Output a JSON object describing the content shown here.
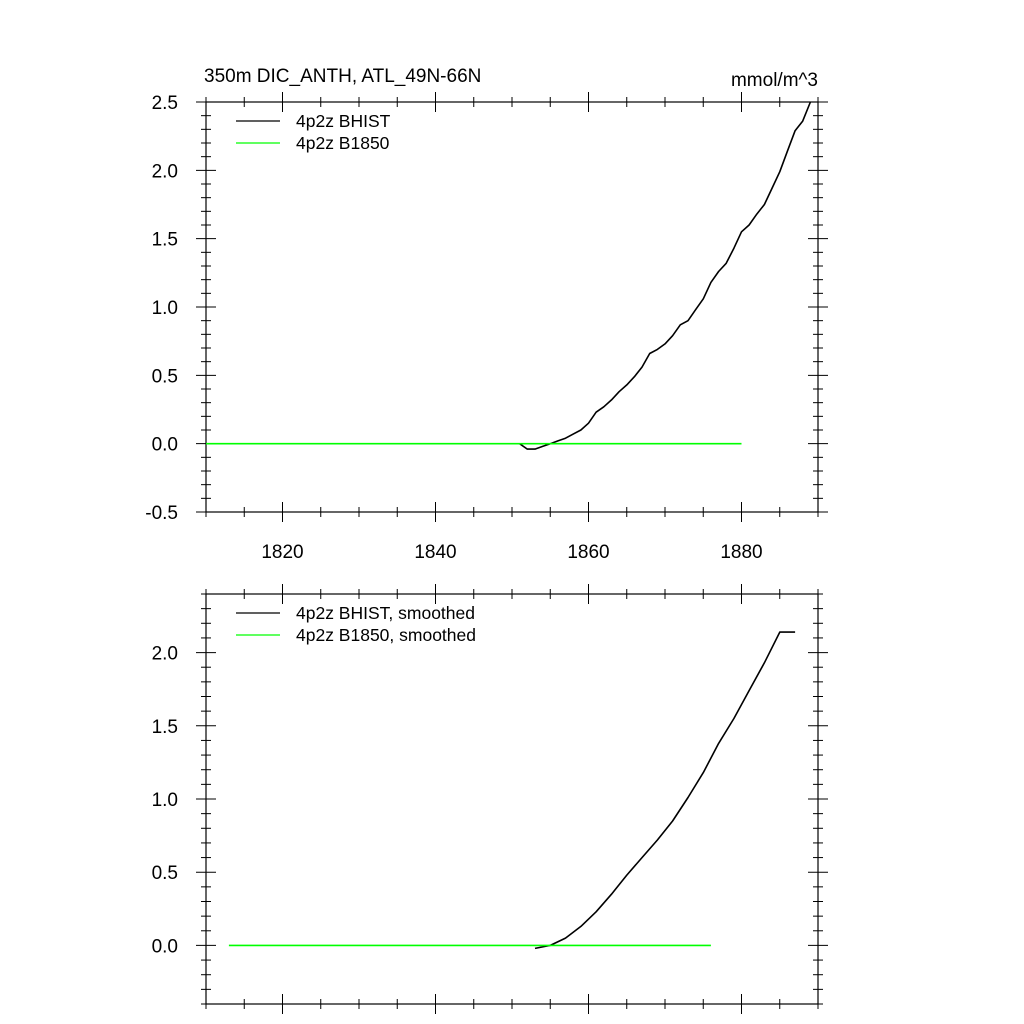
{
  "chart_data": [
    {
      "type": "line",
      "title": "350m DIC_ANTH, ATL_49N-66N",
      "units": "mmol/m^3",
      "xlim": [
        1810,
        1890
      ],
      "ylim": [
        -0.5,
        2.5
      ],
      "x_ticks": [
        1820,
        1840,
        1860,
        1880
      ],
      "x_tick_labels": [
        "1820",
        "1840",
        "1860",
        "1880"
      ],
      "y_ticks": [
        -0.5,
        0.0,
        0.5,
        1.0,
        1.5,
        2.0,
        2.5
      ],
      "y_tick_labels": [
        "-0.5",
        "0.0",
        "0.5",
        "1.0",
        "1.5",
        "2.0",
        "2.5"
      ],
      "legend_position": "top-left",
      "series": [
        {
          "name": "4p2z BHIST",
          "color": "#000000",
          "x": [
            1851,
            1852,
            1853,
            1854,
            1855,
            1856,
            1857,
            1858,
            1859,
            1860,
            1861,
            1862,
            1863,
            1864,
            1865,
            1866,
            1867,
            1868,
            1869,
            1870,
            1871,
            1872,
            1873,
            1874,
            1875,
            1876,
            1877,
            1878,
            1879,
            1880,
            1881,
            1882,
            1883,
            1884,
            1885,
            1886,
            1887,
            1888,
            1889
          ],
          "y": [
            0.0,
            -0.04,
            -0.04,
            -0.02,
            0.0,
            0.02,
            0.04,
            0.07,
            0.1,
            0.15,
            0.23,
            0.27,
            0.32,
            0.38,
            0.43,
            0.49,
            0.56,
            0.66,
            0.69,
            0.73,
            0.79,
            0.87,
            0.9,
            0.98,
            1.06,
            1.18,
            1.26,
            1.32,
            1.43,
            1.55,
            1.6,
            1.68,
            1.75,
            1.87,
            1.99,
            2.14,
            2.29,
            2.36,
            2.5
          ]
        },
        {
          "name": "4p2z B1850",
          "color": "#00ff00",
          "x": [
            1810,
            1880
          ],
          "y": [
            0.0,
            0.0
          ]
        }
      ]
    },
    {
      "type": "line",
      "xlim": [
        1810,
        1890
      ],
      "ylim": [
        -0.4,
        2.4
      ],
      "x_ticks": [
        1820,
        1840,
        1860,
        1880
      ],
      "y_ticks": [
        0.0,
        0.5,
        1.0,
        1.5,
        2.0
      ],
      "y_tick_labels": [
        "0.0",
        "0.5",
        "1.0",
        "1.5",
        "2.0"
      ],
      "legend_position": "top-left",
      "series": [
        {
          "name": "4p2z BHIST, smoothed",
          "color": "#000000",
          "x": [
            1853,
            1855,
            1857,
            1859,
            1861,
            1863,
            1865,
            1867,
            1869,
            1871,
            1873,
            1875,
            1877,
            1879,
            1881,
            1883,
            1885,
            1887
          ],
          "y": [
            -0.02,
            0.0,
            0.05,
            0.13,
            0.23,
            0.35,
            0.48,
            0.6,
            0.72,
            0.85,
            1.01,
            1.18,
            1.38,
            1.55,
            1.74,
            1.93,
            2.14,
            2.14
          ]
        },
        {
          "name": "4p2z B1850, smoothed",
          "color": "#00ff00",
          "x": [
            1813,
            1876
          ],
          "y": [
            0.0,
            0.0
          ]
        }
      ]
    }
  ]
}
